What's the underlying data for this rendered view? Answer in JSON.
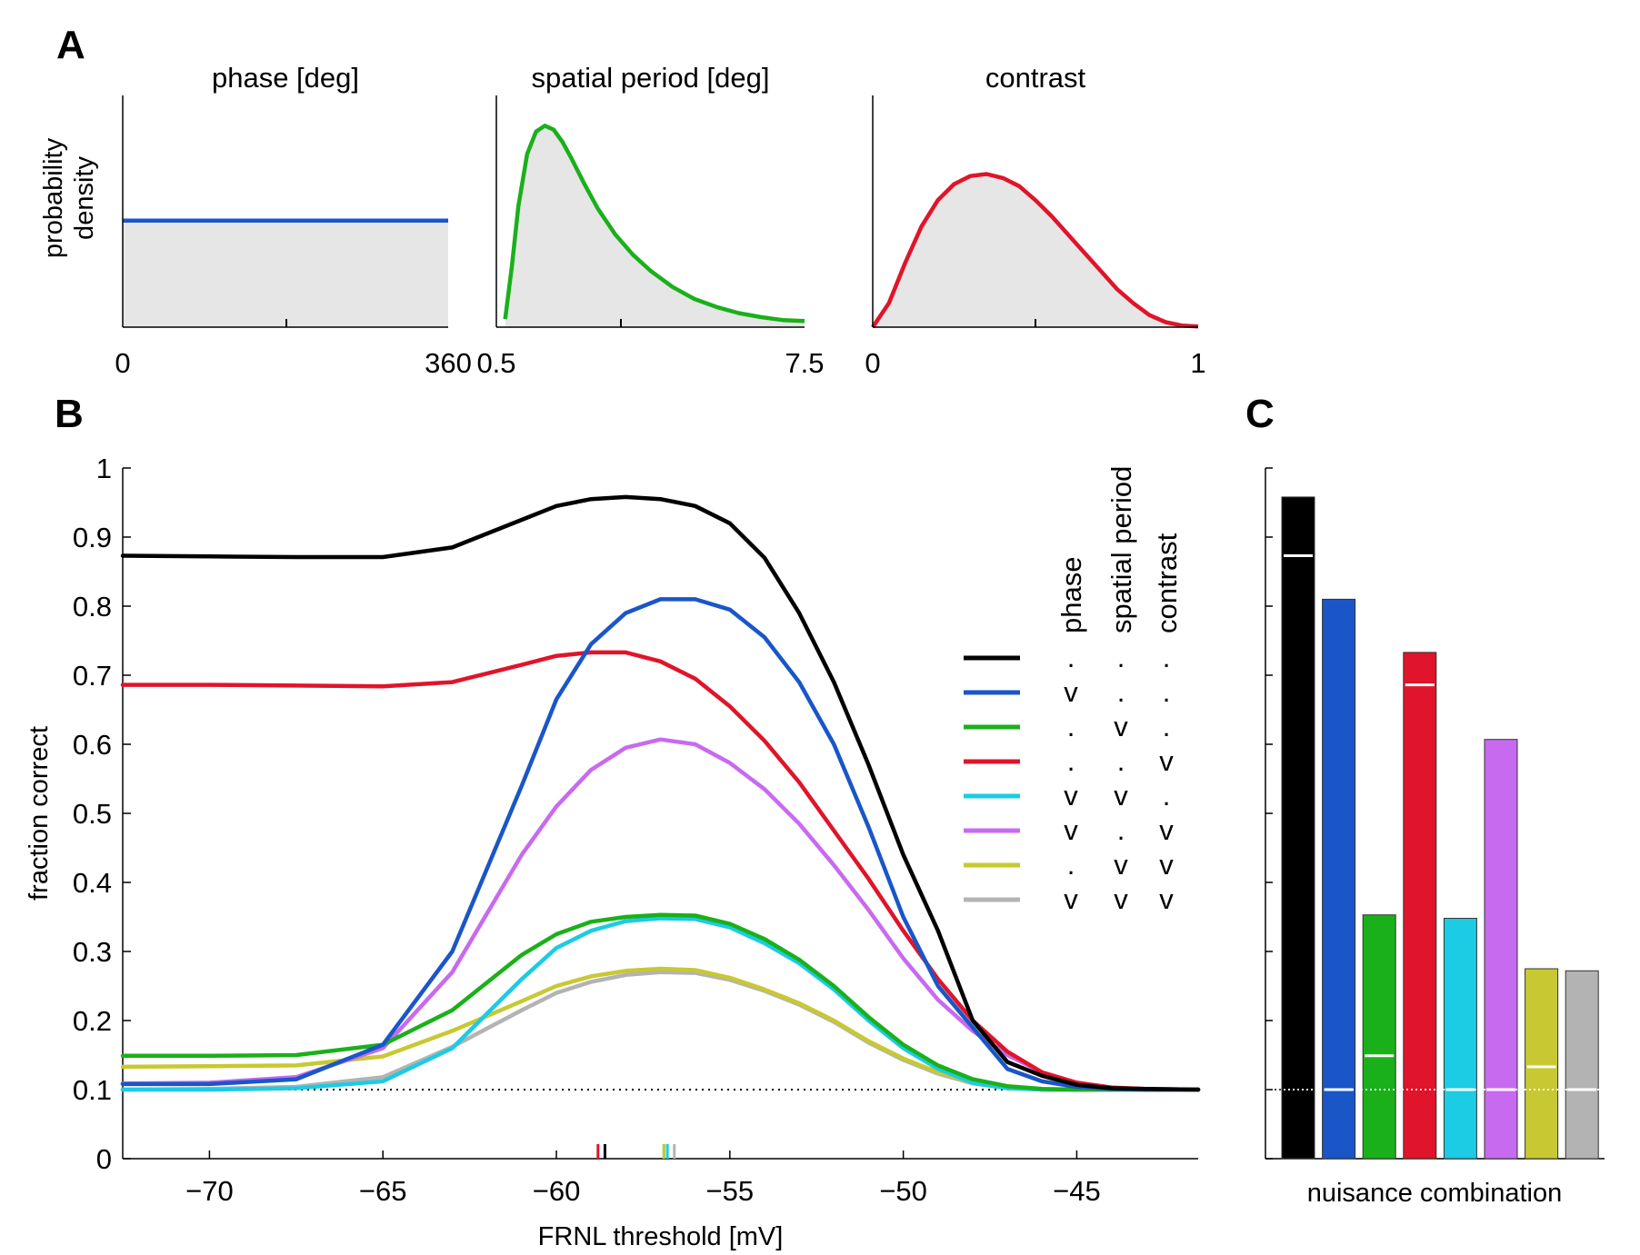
{
  "panels": {
    "a": "A",
    "b": "B",
    "c": "C"
  },
  "chart_data": [
    {
      "type": "area",
      "panel": "A",
      "title": "phase [deg]",
      "ylabel": "probability density",
      "xlim": [
        0,
        360
      ],
      "xticklabels": [
        "0",
        "360"
      ],
      "color": "#1a56c8",
      "fill": "#e6e6e6",
      "x": [
        0,
        90,
        180,
        270,
        360
      ],
      "y": [
        0.46,
        0.46,
        0.46,
        0.46,
        0.46
      ],
      "ylim": [
        0,
        1
      ]
    },
    {
      "type": "area",
      "panel": "A",
      "title": "spatial period [deg]",
      "xlim": [
        0.5,
        7.5
      ],
      "xticklabels": [
        "0.5",
        "7.5"
      ],
      "color": "#1ab01a",
      "fill": "#e6e6e6",
      "x": [
        0.7,
        0.85,
        1.0,
        1.2,
        1.4,
        1.6,
        1.8,
        2.0,
        2.2,
        2.5,
        2.8,
        3.2,
        3.6,
        4.0,
        4.5,
        5.0,
        5.5,
        6.0,
        6.5,
        7.0,
        7.5
      ],
      "y": [
        0.04,
        0.3,
        0.6,
        0.86,
        0.97,
        1.0,
        0.98,
        0.92,
        0.84,
        0.71,
        0.59,
        0.46,
        0.36,
        0.28,
        0.2,
        0.14,
        0.1,
        0.07,
        0.05,
        0.035,
        0.03
      ],
      "ylim": [
        0,
        1.15
      ]
    },
    {
      "type": "area",
      "panel": "A",
      "title": "contrast",
      "xlim": [
        0,
        1
      ],
      "xticklabels": [
        "0",
        "1"
      ],
      "color": "#e0142a",
      "fill": "#e6e6e6",
      "x": [
        0,
        0.05,
        0.1,
        0.15,
        0.2,
        0.25,
        0.3,
        0.35,
        0.4,
        0.45,
        0.5,
        0.55,
        0.6,
        0.65,
        0.7,
        0.75,
        0.8,
        0.85,
        0.9,
        0.95,
        1.0
      ],
      "y": [
        0.0,
        0.12,
        0.32,
        0.5,
        0.63,
        0.71,
        0.75,
        0.76,
        0.74,
        0.7,
        0.63,
        0.55,
        0.46,
        0.37,
        0.28,
        0.19,
        0.12,
        0.06,
        0.025,
        0.008,
        0.003
      ],
      "ylim": [
        0,
        1.15
      ]
    },
    {
      "type": "line",
      "panel": "B",
      "xlabel": "FRNL threshold [mV]",
      "ylabel": "fraction correct",
      "xlim": [
        -72.5,
        -41.5
      ],
      "ylim": [
        0,
        1
      ],
      "xticks": [
        -70,
        -65,
        -60,
        -55,
        -50,
        -45
      ],
      "yticks": [
        0,
        0.1,
        0.2,
        0.3,
        0.4,
        0.5,
        0.6,
        0.7,
        0.8,
        0.9,
        1
      ],
      "chance_level": 0.1,
      "legend_headers": [
        "phase",
        "spatial period",
        "contrast"
      ],
      "x": [
        -72.5,
        -70,
        -67.5,
        -65,
        -63,
        -61,
        -60,
        -59,
        -58,
        -57,
        -56,
        -55,
        -54,
        -53,
        -52,
        -51,
        -50,
        -49,
        -48,
        -47,
        -46,
        -45,
        -44,
        -43,
        -41.5
      ],
      "series": [
        {
          "color": "#000000",
          "marks": [
            ".",
            ".",
            "."
          ],
          "optimum": -58.6,
          "values": [
            0.873,
            0.872,
            0.871,
            0.871,
            0.885,
            0.925,
            0.945,
            0.955,
            0.958,
            0.955,
            0.945,
            0.92,
            0.87,
            0.79,
            0.69,
            0.57,
            0.44,
            0.33,
            0.2,
            0.14,
            0.12,
            0.107,
            0.102,
            0.101,
            0.1
          ]
        },
        {
          "color": "#1a56c8",
          "marks": [
            "v",
            ".",
            "."
          ],
          "values": [
            0.108,
            0.108,
            0.115,
            0.165,
            0.3,
            0.54,
            0.665,
            0.745,
            0.79,
            0.81,
            0.81,
            0.795,
            0.755,
            0.69,
            0.6,
            0.48,
            0.35,
            0.25,
            0.19,
            0.13,
            0.112,
            0.104,
            0.101,
            0.1,
            0.1
          ]
        },
        {
          "color": "#1ab01a",
          "marks": [
            ".",
            "v",
            "."
          ],
          "optimum": -56.9,
          "values": [
            0.149,
            0.149,
            0.15,
            0.165,
            0.215,
            0.295,
            0.325,
            0.343,
            0.35,
            0.353,
            0.352,
            0.34,
            0.318,
            0.288,
            0.25,
            0.205,
            0.165,
            0.135,
            0.115,
            0.105,
            0.101,
            0.1,
            0.1,
            0.1,
            0.1
          ]
        },
        {
          "color": "#e0142a",
          "marks": [
            ".",
            ".",
            "v"
          ],
          "optimum": -58.8,
          "values": [
            0.686,
            0.686,
            0.685,
            0.684,
            0.69,
            0.715,
            0.728,
            0.733,
            0.733,
            0.72,
            0.695,
            0.655,
            0.605,
            0.545,
            0.475,
            0.405,
            0.33,
            0.26,
            0.2,
            0.155,
            0.125,
            0.11,
            0.103,
            0.101,
            0.1
          ]
        },
        {
          "color": "#1ccbe4",
          "marks": [
            "v",
            "v",
            "."
          ],
          "optimum": -56.8,
          "values": [
            0.1,
            0.1,
            0.102,
            0.112,
            0.16,
            0.26,
            0.305,
            0.33,
            0.344,
            0.348,
            0.347,
            0.335,
            0.312,
            0.283,
            0.245,
            0.2,
            0.16,
            0.13,
            0.11,
            0.102,
            0.1,
            0.1,
            0.1,
            0.1,
            0.1
          ]
        },
        {
          "color": "#c86af0",
          "marks": [
            "v",
            ".",
            "v"
          ],
          "values": [
            0.109,
            0.11,
            0.118,
            0.16,
            0.27,
            0.44,
            0.51,
            0.563,
            0.595,
            0.607,
            0.6,
            0.573,
            0.535,
            0.485,
            0.425,
            0.36,
            0.29,
            0.23,
            0.185,
            0.15,
            0.125,
            0.11,
            0.103,
            0.1,
            0.1
          ]
        },
        {
          "color": "#c8c832",
          "marks": [
            ".",
            "v",
            "v"
          ],
          "optimum": -56.9,
          "values": [
            0.133,
            0.134,
            0.135,
            0.148,
            0.185,
            0.228,
            0.25,
            0.264,
            0.272,
            0.275,
            0.273,
            0.262,
            0.245,
            0.225,
            0.2,
            0.17,
            0.145,
            0.125,
            0.11,
            0.103,
            0.1,
            0.1,
            0.1,
            0.1,
            0.1
          ]
        },
        {
          "color": "#b3b3b3",
          "marks": [
            "v",
            "v",
            "v"
          ],
          "optimum": -56.6,
          "values": [
            0.1,
            0.101,
            0.104,
            0.118,
            0.162,
            0.215,
            0.24,
            0.256,
            0.266,
            0.27,
            0.269,
            0.259,
            0.243,
            0.223,
            0.198,
            0.168,
            0.143,
            0.123,
            0.109,
            0.102,
            0.1,
            0.1,
            0.1,
            0.1,
            0.1
          ]
        }
      ]
    },
    {
      "type": "bar",
      "panel": "C",
      "xlabel": "nuisance combination",
      "ylim": [
        0,
        1
      ],
      "chance_level": 0.1,
      "bars": [
        {
          "color": "#000000",
          "value": 0.958,
          "baseline": 0.873
        },
        {
          "color": "#1a56c8",
          "value": 0.81,
          "baseline": 0.1
        },
        {
          "color": "#1ab01a",
          "value": 0.353,
          "baseline": 0.149
        },
        {
          "color": "#e0142a",
          "value": 0.733,
          "baseline": 0.686
        },
        {
          "color": "#1ccbe4",
          "value": 0.348,
          "baseline": 0.1
        },
        {
          "color": "#c86af0",
          "value": 0.607,
          "baseline": 0.1
        },
        {
          "color": "#c8c832",
          "value": 0.275,
          "baseline": 0.133
        },
        {
          "color": "#b3b3b3",
          "value": 0.272,
          "baseline": 0.1
        }
      ]
    }
  ]
}
